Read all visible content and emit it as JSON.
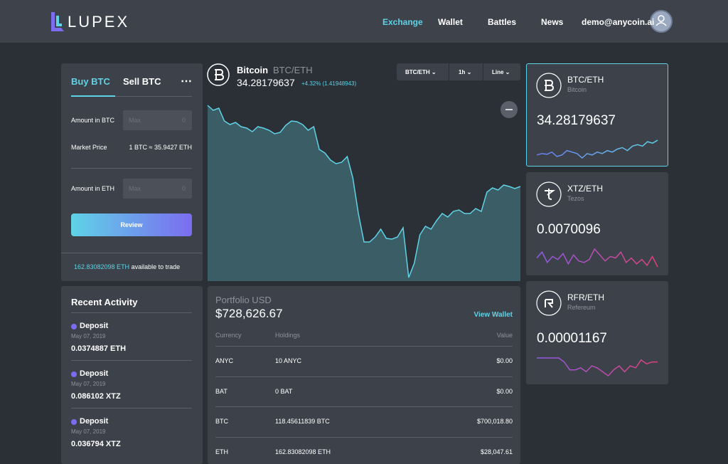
{
  "nav": {
    "logo": "LUPEX",
    "links": [
      "Exchange",
      "Wallet",
      "Battles",
      "News"
    ],
    "user": "demo@anycoin.ai"
  },
  "trade": {
    "tabs": [
      "Buy BTC",
      "Sell BTC"
    ],
    "amount_btc": {
      "label": "Amount in BTC",
      "placeholder": "Max",
      "value": "0"
    },
    "market_price": {
      "label": "Market Price",
      "value": "1 BTC ≈ 35.9427 ETH"
    },
    "amount_eth": {
      "label": "Amount in ETH",
      "placeholder": "Max",
      "value": "0"
    },
    "button": "Review",
    "available": "162.83082098 ETH",
    "available_suffix": "available to trade"
  },
  "activity": {
    "title": "Recent Activity",
    "items": [
      {
        "type": "Deposit",
        "date": "May 07, 2019",
        "amount": "0.0374887 ETH"
      },
      {
        "type": "Deposit",
        "date": "May 07, 2019",
        "amount": "0.086102 XTZ"
      },
      {
        "type": "Deposit",
        "date": "May 07, 2019",
        "amount": "0.036794 XTZ"
      }
    ]
  },
  "chart": {
    "name": "Bitcoin",
    "pair": "BTC/ETH",
    "price": "34.28179637",
    "change": "+4.32% (1.41948943)",
    "controls": [
      "BTC/ETH",
      "1h",
      "Line"
    ],
    "values": [
      242,
      235,
      238,
      220,
      215,
      218,
      212,
      210,
      205,
      212,
      210,
      207,
      202,
      204,
      214,
      220,
      219,
      215,
      207,
      212,
      180,
      175,
      165,
      160,
      162,
      170,
      140,
      90,
      50,
      50,
      57,
      68,
      55,
      54,
      57,
      70,
      0,
      20,
      60,
      72,
      68,
      80,
      90,
      85,
      93,
      95,
      90,
      90,
      97,
      93,
      120,
      126,
      123,
      130,
      128,
      125,
      128
    ]
  },
  "portfolio": {
    "title": "Portfolio USD",
    "total": "$728,626.67",
    "link": "View Wallet",
    "columns": [
      "Currency",
      "Holdings",
      "Value"
    ],
    "rows": [
      [
        "ANYC",
        "10 ANYC",
        "$0.00"
      ],
      [
        "BAT",
        "0 BAT",
        "$0.00"
      ],
      [
        "BTC",
        "118.45611839 BTC",
        "$700,018.80"
      ],
      [
        "ETH",
        "162.83082098 ETH",
        "$28,047.61"
      ]
    ]
  },
  "markets": [
    {
      "pair": "BTC/ETH",
      "name": "Bitcoin",
      "price": "34.28179637",
      "values": [
        3,
        4,
        3.5,
        5,
        2,
        3,
        6,
        5,
        4,
        1,
        4,
        3,
        5,
        4,
        6,
        5,
        7,
        8,
        6,
        9,
        10,
        9,
        12,
        11,
        13
      ]
    },
    {
      "pair": "XTZ/ETH",
      "name": "Tezos",
      "price": "0.0070096",
      "values": [
        8,
        12,
        5,
        9,
        7,
        11,
        4,
        10,
        6,
        5,
        7,
        14,
        10,
        6,
        9,
        8,
        12,
        5,
        8,
        4,
        7,
        3,
        9,
        2
      ]
    },
    {
      "pair": "RFR/ETH",
      "name": "Refereum",
      "price": "0.00001167",
      "values": [
        10,
        10,
        10,
        10,
        10,
        8,
        4,
        4,
        5,
        3,
        6,
        5,
        3,
        1,
        4,
        6,
        3,
        6,
        5,
        9,
        7,
        8,
        8
      ]
    }
  ]
}
